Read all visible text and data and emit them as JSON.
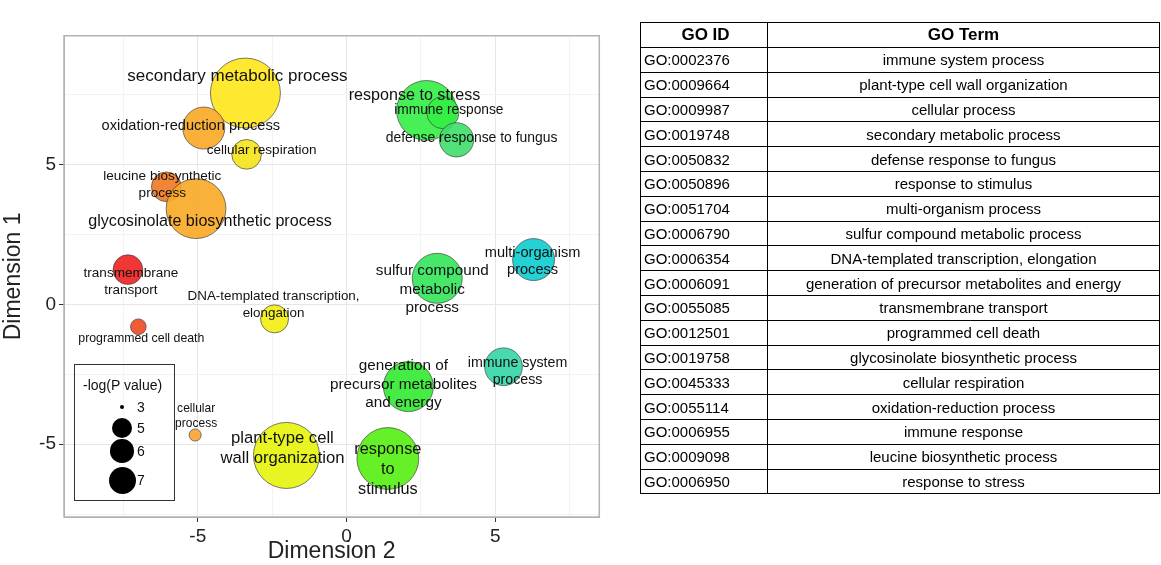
{
  "chart_data": [
    {
      "type": "bubble",
      "xlabel": "Dimension 2",
      "ylabel": "Dimension 1",
      "legend_title": "-log(P value)",
      "grid": true,
      "xlim": [
        -9.5,
        8.5
      ],
      "ylim": [
        -7.6,
        9.6
      ],
      "xticks": [
        {
          "value": -7.5,
          "label": null
        },
        -5,
        {
          "value": -2.5,
          "label": null
        },
        0,
        {
          "value": 2.5,
          "label": null
        },
        5,
        {
          "value": 7.5,
          "label": null
        }
      ],
      "yticks": [
        {
          "value": -7.5,
          "label": null
        },
        -5,
        {
          "value": -2.5,
          "label": null
        },
        0,
        {
          "value": 2.5,
          "label": null
        },
        5,
        {
          "value": 7.5,
          "label": null
        }
      ],
      "x": [
        -3.4,
        -4.8,
        -3.36,
        -6.06,
        -5.06,
        -7.35,
        -7.0,
        -2.42,
        -5.09,
        -2.02,
        1.39,
        2.08,
        5.28,
        3.05,
        6.29,
        2.69,
        3.24,
        3.7
      ],
      "values": [
        7.55,
        6.3,
        5.36,
        4.2,
        3.42,
        1.24,
        -0.8,
        -0.52,
        -4.67,
        -5.4,
        -5.51,
        -2.94,
        -2.23,
        0.93,
        1.6,
        6.93,
        6.85,
        5.88
      ],
      "sizes": [
        1,
        0.36,
        0.18,
        0.18,
        0.73,
        0.18,
        0.05,
        0.16,
        0.03,
        0.89,
        0.78,
        0.51,
        0.29,
        0.51,
        0.36,
        0.73,
        0.21,
        0.24
      ],
      "colors": [
        "#ffe619",
        "#f9a825",
        "#f5e31a",
        "#f07820",
        "#f9a825",
        "#f02020",
        "#f04a20",
        "#f2ee10",
        "#f7a530",
        "#e5f40a",
        "#55ee10",
        "#30ea30",
        "#33d6a8",
        "#33e65a",
        "#0ccdd0",
        "#33ee44",
        "#33ee44",
        "#3ddf6a"
      ],
      "annotations": [
        {
          "text": "secondary metabolic process",
          "x": -3.4,
          "y": 7.55
        },
        {
          "text": "oxidation-reduction process",
          "x": -4.8,
          "y": 6.3
        },
        {
          "text": "cellular respiration",
          "x": -3.36,
          "y": 5.36
        },
        {
          "text": "leucine biosynthetic\nprocess",
          "x": -6.06,
          "y": 4.2
        },
        {
          "text": "glycosinolate biosynthetic process",
          "x": -5.06,
          "y": 3.42
        },
        {
          "text": "transmembrane\ntransport",
          "x": -7.35,
          "y": 1.24
        },
        {
          "text": "programmed cell death",
          "x": -7.0,
          "y": -0.8
        },
        {
          "text": "DNA-templated transcription,\nelongation",
          "x": -2.42,
          "y": -0.52
        },
        {
          "text": "cellular\nprocess",
          "x": -5.09,
          "y": -4.67
        },
        {
          "text": "plant-type cell\nwall organization",
          "x": -2.02,
          "y": -5.4
        },
        {
          "text": "response\nto\nstimulus",
          "x": 1.39,
          "y": -5.51
        },
        {
          "text": "generation of\nprecursor metabolites\nand energy",
          "x": 2.08,
          "y": -2.94
        },
        {
          "text": "immune system\nprocess",
          "x": 5.28,
          "y": -2.23
        },
        {
          "text": "sulfur compound\nmetabolic\nprocess",
          "x": 3.05,
          "y": 0.93
        },
        {
          "text": "multi-organism\nprocess",
          "x": 6.29,
          "y": 1.6
        },
        {
          "text": "response to stress",
          "x": 2.69,
          "y": 6.93
        },
        {
          "text": "immune response",
          "x": 3.24,
          "y": 6.85
        },
        {
          "text": "defense response to fungus",
          "x": 3.7,
          "y": 5.88
        },
        "3",
        "5",
        "6",
        "7"
      ]
    },
    {
      "type": "other",
      "annotations": [
        "GO ID",
        "GO Term",
        "GO:0002376",
        "immune system process",
        "GO:0009664",
        "plant-type cell wall organization",
        "GO:0009987",
        "cellular process",
        "GO:0019748",
        "secondary metabolic process",
        "GO:0050832",
        "defense response to fungus",
        "GO:0050896",
        "response to stimulus",
        "GO:0051704",
        "multi-organism process",
        "GO:0006790",
        "sulfur compound metabolic process",
        "GO:0006354",
        "DNA-templated transcription, elongation",
        "GO:0006091",
        "generation of precursor metabolites and energy",
        "GO:0055085",
        "transmembrane transport",
        "GO:0012501",
        "programmed cell death",
        "GO:0019758",
        "glycosinolate biosynthetic process",
        "GO:0045333",
        "cellular respiration",
        "GO:0055114",
        "oxidation-reduction process",
        "GO:0006955",
        "immune response",
        "GO:0009098",
        "leucine biosynthetic process",
        "GO:0006950",
        "response to stress"
      ]
    }
  ]
}
